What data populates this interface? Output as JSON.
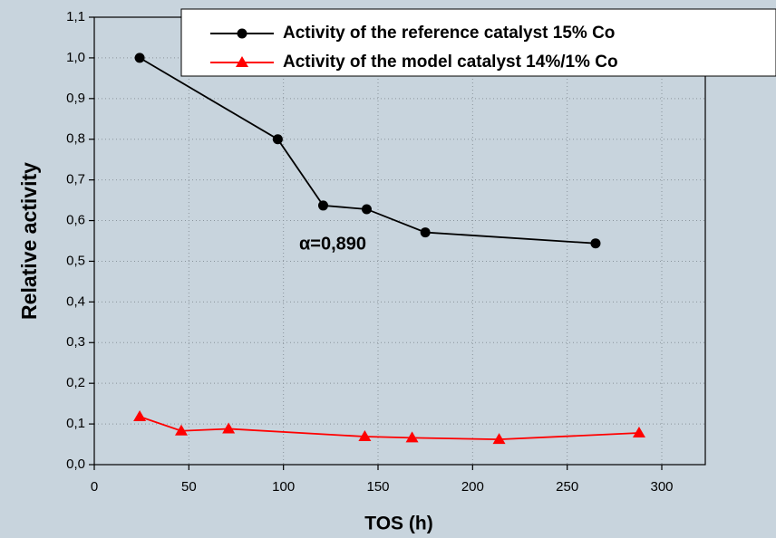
{
  "chart_data": {
    "type": "line",
    "x_label": "TOS (h)",
    "y_label": "Relative activity",
    "annotation": "α=0,890",
    "xlim": [
      0,
      323
    ],
    "xticks": [
      0,
      50,
      100,
      150,
      200,
      250,
      300
    ],
    "ylim": [
      0,
      1.1
    ],
    "yticks": [
      {
        "value": 0,
        "label": "0,0"
      },
      {
        "value": 0.1,
        "label": "0,1"
      },
      {
        "value": 0.2,
        "label": "0,2"
      },
      {
        "value": 0.3,
        "label": "0,3"
      },
      {
        "value": 0.4,
        "label": "0,4"
      },
      {
        "value": 0.5,
        "label": "0,5"
      },
      {
        "value": 0.6,
        "label": "0,6"
      },
      {
        "value": 0.7,
        "label": "0,7"
      },
      {
        "value": 0.8,
        "label": "0,8"
      },
      {
        "value": 0.9,
        "label": "0,9"
      },
      {
        "value": 1.0,
        "label": "1,0"
      },
      {
        "value": 1.1,
        "label": "1,1"
      }
    ],
    "grid": true,
    "legend": "top-right",
    "series": [
      {
        "name": "Activity of the reference catalyst 15% Co",
        "color": "#000000",
        "marker": "circle",
        "x": [
          24,
          97,
          121,
          144,
          175,
          265
        ],
        "values": [
          1.0,
          0.8,
          0.637,
          0.628,
          0.571,
          0.544
        ]
      },
      {
        "name": "Activity of the model catalyst 14%/1% Co",
        "color": "#ff0000",
        "marker": "triangle",
        "x": [
          24,
          46,
          71,
          143,
          168,
          214,
          288
        ],
        "values": [
          0.118,
          0.083,
          0.088,
          0.069,
          0.066,
          0.062,
          0.078
        ]
      }
    ]
  }
}
